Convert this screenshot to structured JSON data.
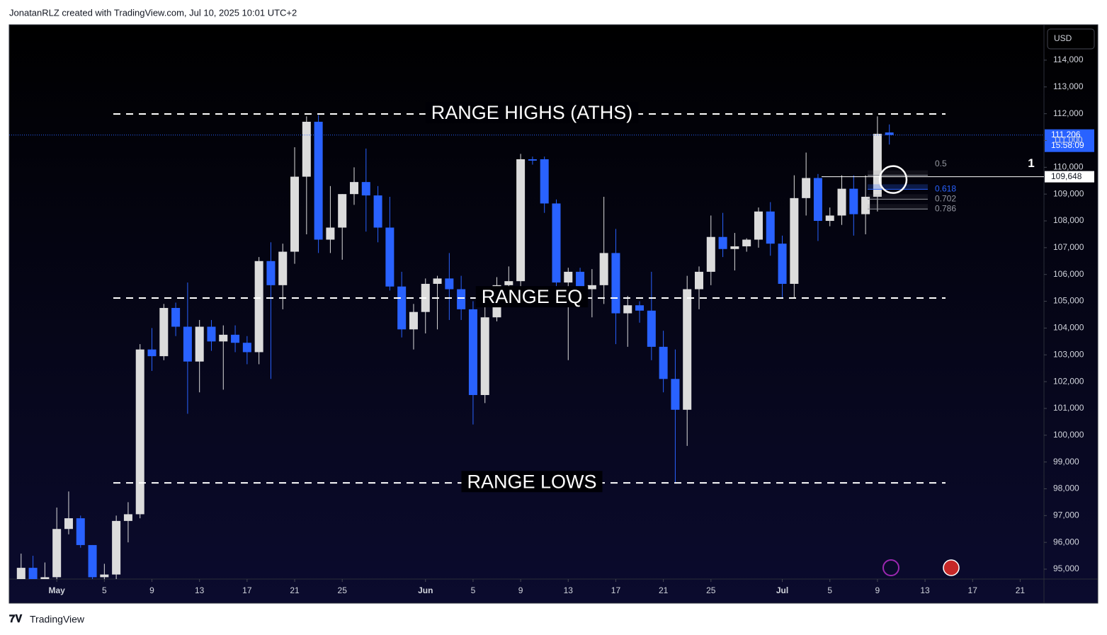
{
  "header": "JonatanRLZ created with TradingView.com, Jul 10, 2025 10:01 UTC+2",
  "footer": "TradingView",
  "chart_data": {
    "type": "candlestick",
    "currency": "USD",
    "x": [
      "2025-04-28",
      "2025-04-29",
      "2025-04-30",
      "2025-05-01",
      "2025-05-02",
      "2025-05-03",
      "2025-05-04",
      "2025-05-05",
      "2025-05-06",
      "2025-05-07",
      "2025-05-08",
      "2025-05-09",
      "2025-05-10",
      "2025-05-11",
      "2025-05-12",
      "2025-05-13",
      "2025-05-14",
      "2025-05-15",
      "2025-05-16",
      "2025-05-17",
      "2025-05-18",
      "2025-05-19",
      "2025-05-20",
      "2025-05-21",
      "2025-05-22",
      "2025-05-23",
      "2025-05-24",
      "2025-05-25",
      "2025-05-26",
      "2025-05-27",
      "2025-05-28",
      "2025-05-29",
      "2025-05-30",
      "2025-05-31",
      "2025-06-01",
      "2025-06-02",
      "2025-06-03",
      "2025-06-04",
      "2025-06-05",
      "2025-06-06",
      "2025-06-07",
      "2025-06-08",
      "2025-06-09",
      "2025-06-10",
      "2025-06-11",
      "2025-06-12",
      "2025-06-13",
      "2025-06-14",
      "2025-06-15",
      "2025-06-16",
      "2025-06-17",
      "2025-06-18",
      "2025-06-19",
      "2025-06-20",
      "2025-06-21",
      "2025-06-22",
      "2025-06-23",
      "2025-06-24",
      "2025-06-25",
      "2025-06-26",
      "2025-06-27",
      "2025-06-28",
      "2025-06-29",
      "2025-06-30",
      "2025-07-01",
      "2025-07-02",
      "2025-07-03",
      "2025-07-04",
      "2025-07-05",
      "2025-07-06",
      "2025-07-07",
      "2025-07-08",
      "2025-07-09",
      "2025-07-10"
    ],
    "open": [
      94600,
      95050,
      94600,
      94700,
      96500,
      96900,
      95900,
      94700,
      94800,
      96800,
      97050,
      103200,
      102950,
      104750,
      104050,
      102750,
      104050,
      103500,
      103750,
      103450,
      103100,
      106500,
      105600,
      106850,
      109650,
      111700,
      107300,
      107750,
      109000,
      109450,
      108950,
      107750,
      105550,
      103950,
      104600,
      105650,
      105850,
      105450,
      104700,
      101500,
      104400,
      105600,
      105750,
      110300,
      110300,
      108650,
      105700,
      106100,
      105450,
      105600,
      106800,
      104550,
      104850,
      104650,
      103300,
      102100,
      100950,
      105450,
      106100,
      107400,
      106950,
      107050,
      107300,
      108350,
      107150,
      105650,
      108850,
      109600,
      108000,
      108200,
      109200,
      108250,
      108900,
      111300
    ],
    "high": [
      95580,
      95500,
      95250,
      97300,
      97900,
      97000,
      95900,
      95200,
      97000,
      97500,
      103400,
      104000,
      104900,
      104950,
      105700,
      104300,
      104300,
      104100,
      104100,
      103700,
      106650,
      107200,
      107150,
      110750,
      111900,
      111950,
      109300,
      109000,
      110000,
      110700,
      109300,
      108900,
      106100,
      104900,
      105850,
      105950,
      106800,
      105950,
      105000,
      105450,
      105900,
      106300,
      110500,
      110400,
      110400,
      108800,
      106250,
      106250,
      106200,
      108900,
      107700,
      105200,
      105000,
      106100,
      103900,
      103200,
      105950,
      106300,
      108200,
      108300,
      107550,
      107350,
      108500,
      108700,
      107450,
      109700,
      110550,
      109750,
      108500,
      109700,
      109700,
      109700,
      111900,
      111600
    ],
    "low": [
      94400,
      94200,
      93000,
      94600,
      96300,
      95800,
      94400,
      93500,
      94600,
      96000,
      96900,
      102400,
      102800,
      103700,
      100800,
      101600,
      103150,
      101700,
      103100,
      102650,
      102650,
      102100,
      104700,
      106400,
      107500,
      106800,
      106800,
      106550,
      108600,
      107600,
      107200,
      105400,
      103650,
      103200,
      103800,
      103950,
      104300,
      104300,
      100400,
      101200,
      104250,
      105100,
      105350,
      110100,
      108300,
      105500,
      102800,
      104900,
      104400,
      104900,
      103400,
      103300,
      104200,
      102800,
      101600,
      98250,
      99600,
      104700,
      105600,
      106650,
      106150,
      106850,
      107000,
      106700,
      105150,
      105100,
      108200,
      107250,
      107800,
      107850,
      107450,
      107500,
      108350,
      110850
    ],
    "close": [
      95050,
      94600,
      94700,
      96500,
      96900,
      95900,
      94700,
      94800,
      96800,
      97050,
      103200,
      102950,
      104750,
      104050,
      102750,
      104050,
      103500,
      103750,
      103450,
      103100,
      106500,
      105600,
      106850,
      109650,
      111700,
      107300,
      107750,
      109000,
      109450,
      108950,
      107750,
      105550,
      103950,
      104600,
      105650,
      105850,
      105450,
      104700,
      101500,
      104400,
      105600,
      105750,
      110300,
      110250,
      108650,
      105700,
      106100,
      105450,
      105600,
      106800,
      104550,
      104850,
      104650,
      103300,
      102100,
      100950,
      105450,
      106100,
      107400,
      106950,
      107050,
      107300,
      108350,
      107150,
      105650,
      108850,
      109600,
      108000,
      108200,
      109200,
      108250,
      108900,
      111250,
      111206
    ],
    "up_color": "#dcdcdc",
    "down_color": "#2962ff",
    "xlim": [
      "2025-04-27",
      "2025-07-23"
    ],
    "xticks": [
      {
        "value": "2025-05-01",
        "label": "May"
      },
      {
        "value": "2025-05-05",
        "label": "5"
      },
      {
        "value": "2025-05-09",
        "label": "9"
      },
      {
        "value": "2025-05-13",
        "label": "13"
      },
      {
        "value": "2025-05-17",
        "label": "17"
      },
      {
        "value": "2025-05-21",
        "label": "21"
      },
      {
        "value": "2025-05-25",
        "label": "25"
      },
      {
        "value": "2025-06-01",
        "label": "Jun"
      },
      {
        "value": "2025-06-05",
        "label": "5"
      },
      {
        "value": "2025-06-09",
        "label": "9"
      },
      {
        "value": "2025-06-13",
        "label": "13"
      },
      {
        "value": "2025-06-17",
        "label": "17"
      },
      {
        "value": "2025-06-21",
        "label": "21"
      },
      {
        "value": "2025-06-25",
        "label": "25"
      },
      {
        "value": "2025-07-01",
        "label": "Jul"
      },
      {
        "value": "2025-07-05",
        "label": "5"
      },
      {
        "value": "2025-07-09",
        "label": "9"
      },
      {
        "value": "2025-07-13",
        "label": "13"
      },
      {
        "value": "2025-07-17",
        "label": "17"
      },
      {
        "value": "2025-07-21",
        "label": "21"
      }
    ],
    "ylim": [
      94630,
      115320
    ],
    "yticks": [
      {
        "value": 95000,
        "label": "95,000"
      },
      {
        "value": 96000,
        "label": "96,000"
      },
      {
        "value": 97000,
        "label": "97,000"
      },
      {
        "value": 98000,
        "label": "98,000"
      },
      {
        "value": 99000,
        "label": "99,000"
      },
      {
        "value": 100000,
        "label": "100,000"
      },
      {
        "value": 101000,
        "label": "101,000"
      },
      {
        "value": 102000,
        "label": "102,000"
      },
      {
        "value": 103000,
        "label": "103,000"
      },
      {
        "value": 104000,
        "label": "104,000"
      },
      {
        "value": 105000,
        "label": "105,000"
      },
      {
        "value": 106000,
        "label": "106,000"
      },
      {
        "value": 107000,
        "label": "107,000"
      },
      {
        "value": 108000,
        "label": "108,000"
      },
      {
        "value": 109000,
        "label": "109,000"
      },
      {
        "value": 110000,
        "label": "110,000"
      },
      {
        "value": 111000,
        "label": "111,000"
      },
      {
        "value": 112000,
        "label": "112,000"
      },
      {
        "value": 113000,
        "label": "113,000"
      },
      {
        "value": 114000,
        "label": "114,000"
      }
    ],
    "grid": false,
    "ranges": [
      {
        "label": "RANGE HIGHS (ATHS)",
        "value": 111990
      },
      {
        "label": "RANGE EQ",
        "value": 105120
      },
      {
        "label": "RANGE LOWS",
        "value": 98220
      }
    ],
    "fib": {
      "from": 111900,
      "to": 107500,
      "levels": [
        0.5,
        0.618,
        0.702,
        0.786
      ]
    },
    "level_line": {
      "value": 109648,
      "label": "109,648"
    },
    "marker_label": "1",
    "last_price": {
      "value": 111206,
      "label": "111,206",
      "countdown": "15:58:09"
    }
  }
}
